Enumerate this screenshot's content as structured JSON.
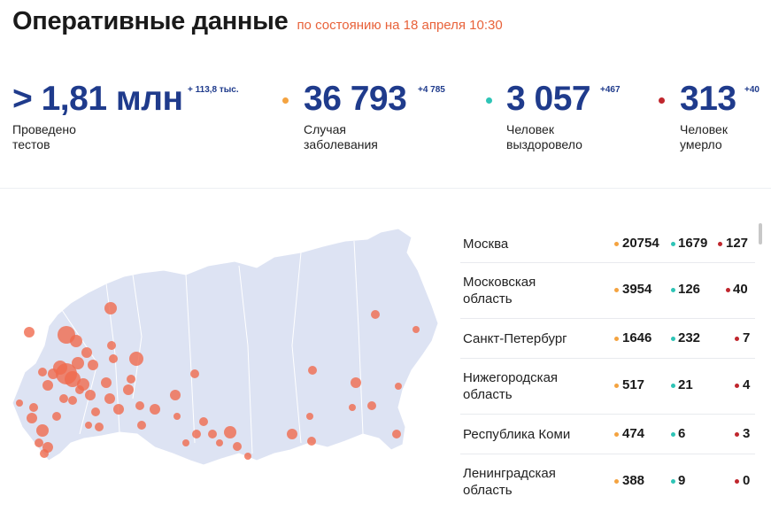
{
  "header": {
    "title": "Оперативные данные",
    "subtitle": "по состоянию на 18 апреля 10:30"
  },
  "stats": [
    {
      "value": "> 1,81 млн",
      "delta": "+ 113,8 тыс.",
      "label": "Проведено\nтестов"
    },
    {
      "value": "36 793",
      "delta": "+4 785",
      "label": "Случая\nзаболевания",
      "color": "#f4a340"
    },
    {
      "value": "3 057",
      "delta": "+467",
      "label": "Человек\nвыздоровело",
      "color": "#2ec4b6"
    },
    {
      "value": "313",
      "delta": "+40",
      "label": "Человек\nумерло",
      "color": "#c0262d"
    }
  ],
  "colors": {
    "cases": "#f4a340",
    "recovered": "#2ec4b6",
    "deaths": "#c0262d",
    "brand": "#1f3b8c",
    "accent": "#e8623a",
    "map_land": "#dde3f3",
    "map_bubble": "#f06a4e"
  },
  "regions": [
    {
      "name": "Москва",
      "cases": "20754",
      "recovered": "1679",
      "deaths": "127"
    },
    {
      "name": "Московская\nобласть",
      "cases": "3954",
      "recovered": "126",
      "deaths": "40"
    },
    {
      "name": "Санкт-Петербург",
      "cases": "1646",
      "recovered": "232",
      "deaths": "7"
    },
    {
      "name": "Нижегородская\nобласть",
      "cases": "517",
      "recovered": "21",
      "deaths": "4"
    },
    {
      "name": "Республика Коми",
      "cases": "474",
      "recovered": "6",
      "deaths": "3"
    },
    {
      "name": "Ленинградская\nобласть",
      "cases": "388",
      "recovered": "9",
      "deaths": "0"
    }
  ]
}
